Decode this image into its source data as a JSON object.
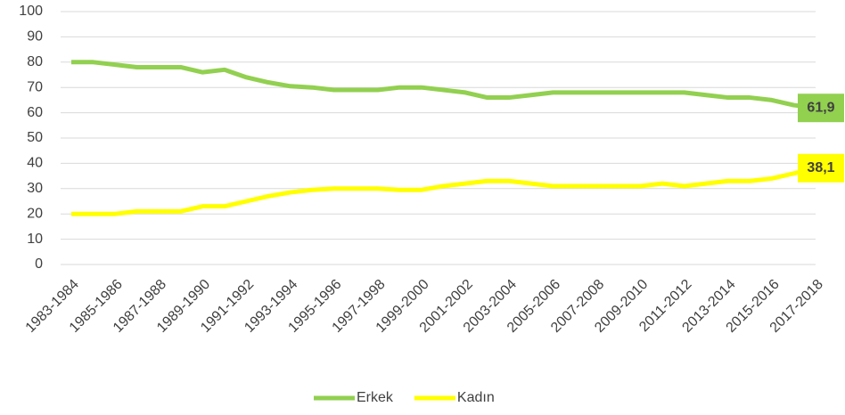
{
  "chart_data": {
    "type": "line",
    "categories": [
      "1983-1984",
      null,
      "1985-1986",
      null,
      "1987-1988",
      null,
      "1989-1990",
      null,
      "1991-1992",
      null,
      "1993-1994",
      null,
      "1995-1996",
      null,
      "1997-1998",
      null,
      "1999-2000",
      null,
      "2001-2002",
      null,
      "2003-2004",
      null,
      "2005-2006",
      null,
      "2007-2008",
      null,
      "2009-2010",
      null,
      "2011-2012",
      null,
      "2013-2014",
      null,
      "2015-2016",
      null,
      "2017-2018"
    ],
    "series": [
      {
        "name": "Erkek",
        "color": "#92d050",
        "values": [
          80,
          80,
          79,
          78,
          78,
          78,
          76,
          77,
          74,
          72,
          70.5,
          70,
          69,
          69,
          69,
          70,
          70,
          69,
          68,
          66,
          66,
          67,
          68,
          68,
          68,
          68,
          68,
          68,
          68,
          67,
          66,
          66,
          65,
          63,
          61.9
        ],
        "value_labels": [
          null,
          null,
          null,
          null,
          null,
          null,
          null,
          null,
          null,
          null,
          null,
          null,
          null,
          null,
          null,
          null,
          null,
          null,
          null,
          null,
          null,
          null,
          null,
          null,
          null,
          null,
          null,
          null,
          null,
          null,
          null,
          null,
          null,
          null,
          "61,9"
        ]
      },
      {
        "name": "Kadın",
        "color": "#ffff00",
        "values": [
          20,
          20,
          20,
          21,
          21,
          21,
          23,
          23,
          25,
          27,
          28.5,
          29.5,
          30,
          30,
          30,
          29.5,
          29.5,
          31,
          32,
          33,
          33,
          32,
          31,
          31,
          31,
          31,
          31,
          32,
          31,
          32,
          33,
          33,
          34,
          36,
          38.1
        ],
        "value_labels": [
          null,
          null,
          null,
          null,
          null,
          null,
          null,
          null,
          null,
          null,
          null,
          null,
          null,
          null,
          null,
          null,
          null,
          null,
          null,
          null,
          null,
          null,
          null,
          null,
          null,
          null,
          null,
          null,
          null,
          null,
          null,
          null,
          null,
          null,
          "38,1"
        ]
      }
    ],
    "ylim": [
      0,
      100
    ],
    "yticks": [
      0,
      10,
      20,
      30,
      40,
      50,
      60,
      70,
      80,
      90,
      100
    ],
    "grid": true,
    "legend": "bottom"
  }
}
